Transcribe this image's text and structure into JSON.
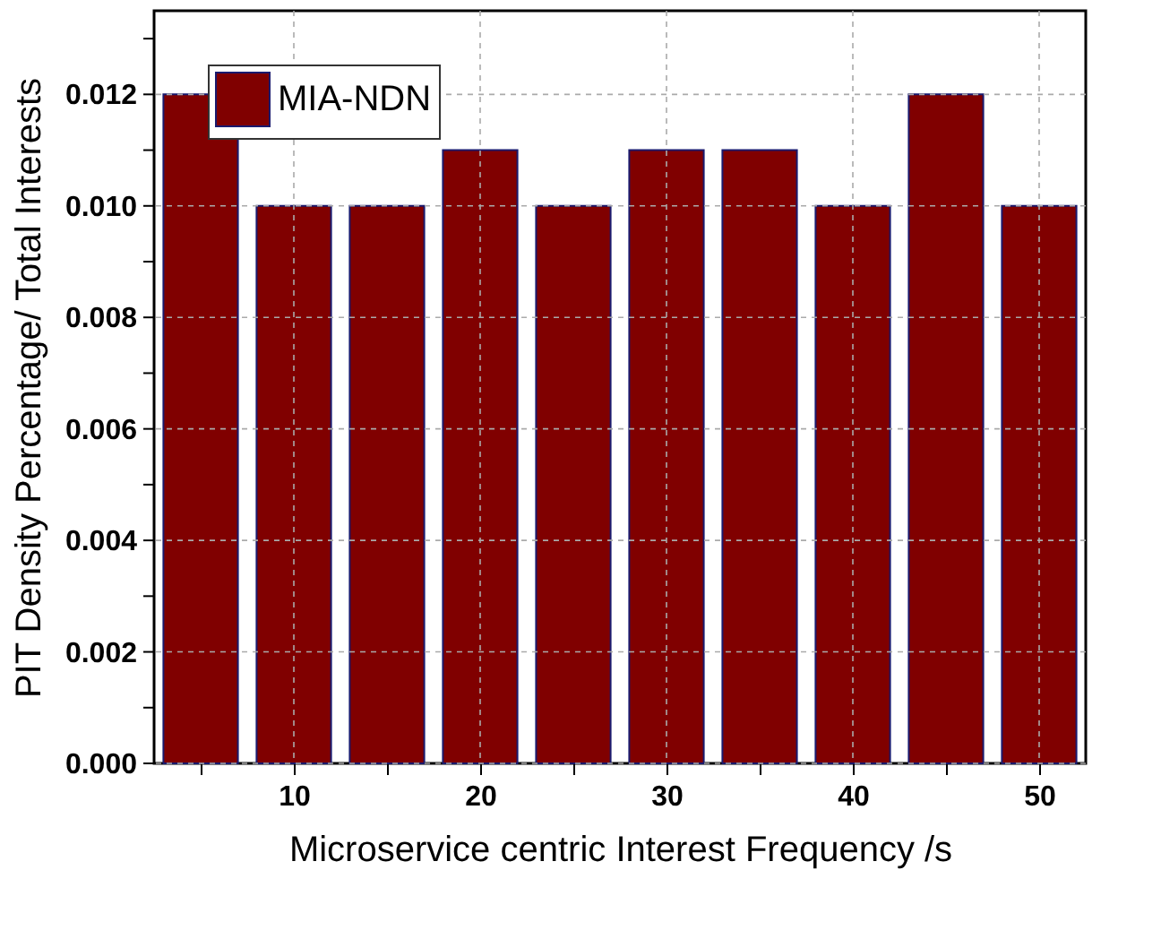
{
  "chart_data": {
    "type": "bar",
    "xlabel": "Microservice centric Interest Frequency /s",
    "ylabel": "PIT Density Percentage/ Total Interests",
    "x": [
      5,
      10,
      15,
      20,
      25,
      30,
      35,
      40,
      45,
      50
    ],
    "series": [
      {
        "name": "MIA-NDN",
        "color": "#800000",
        "values": [
          0.012,
          0.01,
          0.01,
          0.011,
          0.01,
          0.011,
          0.011,
          0.01,
          0.012,
          0.01
        ]
      }
    ],
    "xlim": [
      2.5,
      52.5
    ],
    "xticks": [
      {
        "value": 5,
        "label": null
      },
      10,
      {
        "value": 15,
        "label": null
      },
      20,
      {
        "value": 25,
        "label": null
      },
      30,
      {
        "value": 35,
        "label": null
      },
      40,
      {
        "value": 45,
        "label": null
      },
      50
    ],
    "ylim": [
      0,
      0.0135
    ],
    "yticks": [
      {
        "value": 0,
        "label": "0.000"
      },
      {
        "value": 0.001,
        "label": null
      },
      {
        "value": 0.002,
        "label": "0.002"
      },
      {
        "value": 0.003,
        "label": null
      },
      {
        "value": 0.004,
        "label": "0.004"
      },
      {
        "value": 0.005,
        "label": null
      },
      {
        "value": 0.006,
        "label": "0.006"
      },
      {
        "value": 0.007,
        "label": null
      },
      {
        "value": 0.008,
        "label": "0.008"
      },
      {
        "value": 0.009,
        "label": null
      },
      {
        "value": 0.01,
        "label": "0.010"
      },
      {
        "value": 0.011,
        "label": null
      },
      {
        "value": 0.012,
        "label": "0.012"
      },
      {
        "value": 0.013,
        "label": null
      }
    ],
    "grid": true,
    "legend": "top left"
  }
}
